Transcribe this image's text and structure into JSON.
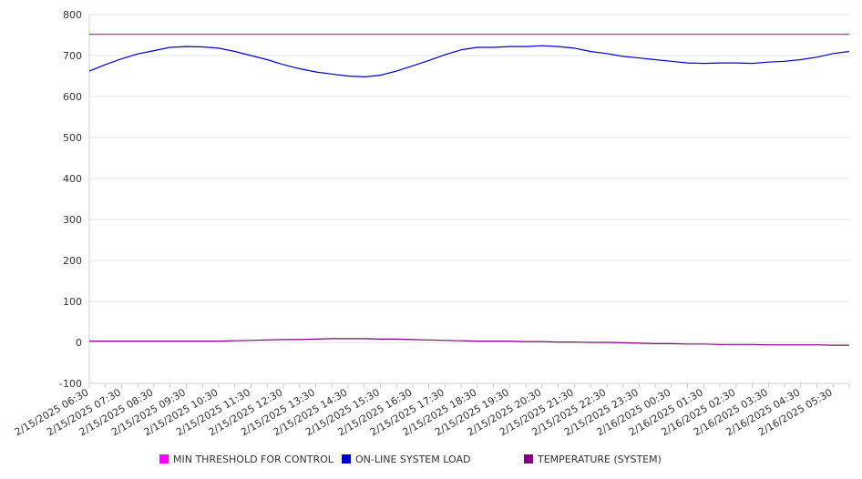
{
  "chart_data": {
    "type": "line",
    "title": "",
    "xlabel": "",
    "ylabel": "",
    "ylim": [
      -100,
      800
    ],
    "yticks": [
      -100,
      0,
      100,
      200,
      300,
      400,
      500,
      600,
      700,
      800
    ],
    "grid": true,
    "legend_position": "bottom",
    "x_tick_labels": [
      "2/15/2025 06:30",
      "2/15/2025 07:30",
      "2/15/2025 08:30",
      "2/15/2025 09:30",
      "2/15/2025 10:30",
      "2/15/2025 11:30",
      "2/15/2025 12:30",
      "2/15/2025 13:30",
      "2/15/2025 14:30",
      "2/15/2025 15:30",
      "2/15/2025 16:30",
      "2/15/2025 17:30",
      "2/15/2025 18:30",
      "2/15/2025 19:30",
      "2/15/2025 20:30",
      "2/15/2025 21:30",
      "2/15/2025 22:30",
      "2/15/2025 23:30",
      "2/16/2025 00:30",
      "2/16/2025 01:30",
      "2/16/2025 02:30",
      "2/16/2025 03:30",
      "2/16/2025 04:30",
      "2/16/2025 05:30"
    ],
    "x": [
      "2/15/2025 06:30",
      "2/15/2025 07:00",
      "2/15/2025 07:30",
      "2/15/2025 08:00",
      "2/15/2025 08:30",
      "2/15/2025 09:00",
      "2/15/2025 09:30",
      "2/15/2025 10:00",
      "2/15/2025 10:30",
      "2/15/2025 11:00",
      "2/15/2025 11:30",
      "2/15/2025 12:00",
      "2/15/2025 12:30",
      "2/15/2025 13:00",
      "2/15/2025 13:30",
      "2/15/2025 14:00",
      "2/15/2025 14:30",
      "2/15/2025 15:00",
      "2/15/2025 15:30",
      "2/15/2025 16:00",
      "2/15/2025 16:30",
      "2/15/2025 17:00",
      "2/15/2025 17:30",
      "2/15/2025 18:00",
      "2/15/2025 18:30",
      "2/15/2025 19:00",
      "2/15/2025 19:30",
      "2/15/2025 20:00",
      "2/15/2025 20:30",
      "2/15/2025 21:00",
      "2/15/2025 21:30",
      "2/15/2025 22:00",
      "2/15/2025 22:30",
      "2/15/2025 23:00",
      "2/15/2025 23:30",
      "2/16/2025 00:00",
      "2/16/2025 00:30",
      "2/16/2025 01:00",
      "2/16/2025 01:30",
      "2/16/2025 02:00",
      "2/16/2025 02:30",
      "2/16/2025 03:00",
      "2/16/2025 03:30",
      "2/16/2025 04:00",
      "2/16/2025 04:30",
      "2/16/2025 05:00",
      "2/16/2025 05:30",
      "2/16/2025 06:00"
    ],
    "series": [
      {
        "name": "MIN THRESHOLD FOR CONTROL",
        "color": "#ff00ff",
        "values": [
          752,
          752,
          752,
          752,
          752,
          752,
          752,
          752,
          752,
          752,
          752,
          752,
          752,
          752,
          752,
          752,
          752,
          752,
          752,
          752,
          752,
          752,
          752,
          752,
          752,
          752,
          752,
          752,
          752,
          752,
          752,
          752,
          752,
          752,
          752,
          752,
          752,
          752,
          752,
          752,
          752,
          752,
          752,
          752,
          752,
          752,
          752,
          752
        ]
      },
      {
        "name": "ON-LINE SYSTEM LOAD",
        "color": "#0000cc",
        "values": [
          662,
          678,
          692,
          704,
          712,
          720,
          722,
          721,
          718,
          710,
          700,
          690,
          678,
          668,
          660,
          655,
          650,
          648,
          652,
          662,
          675,
          688,
          702,
          714,
          720,
          720,
          722,
          722,
          724,
          722,
          718,
          710,
          705,
          698,
          694,
          690,
          686,
          682,
          681,
          682,
          682,
          681,
          684,
          686,
          690,
          696,
          705,
          710
        ]
      },
      {
        "name": "TEMPERATURE (SYSTEM)",
        "color": "#800080",
        "values": [
          3,
          3,
          3,
          3,
          3,
          3,
          3,
          3,
          3,
          4,
          5,
          6,
          7,
          7,
          8,
          9,
          9,
          9,
          8,
          8,
          7,
          6,
          5,
          4,
          3,
          3,
          3,
          2,
          2,
          1,
          1,
          0,
          0,
          -1,
          -2,
          -3,
          -3,
          -4,
          -4,
          -5,
          -5,
          -5,
          -6,
          -6,
          -6,
          -6,
          -7,
          -7
        ]
      }
    ]
  }
}
